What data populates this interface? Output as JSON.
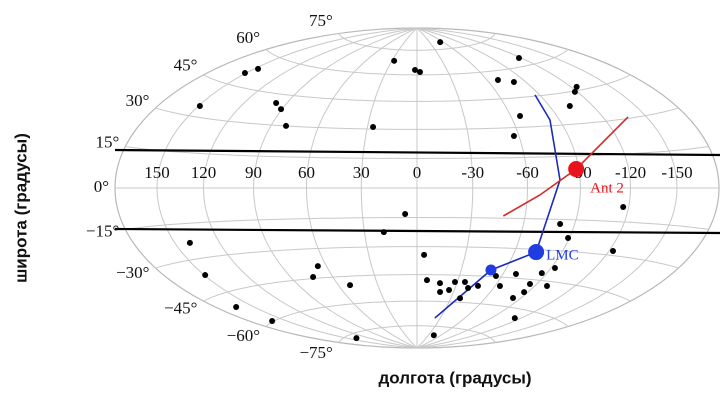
{
  "chart_data": {
    "type": "scatter",
    "projection": "hammer",
    "xlabel": "долгота (градусы)",
    "ylabel": "широта (градусы)",
    "xlim": [
      180,
      -180
    ],
    "ylim": [
      -90,
      90
    ],
    "xticks": [
      150,
      120,
      90,
      60,
      30,
      0,
      -30,
      -60,
      -90,
      -120,
      -150
    ],
    "yticks": [
      {
        "value": -75,
        "label": "−75°"
      },
      {
        "value": -60,
        "label": "−60°"
      },
      {
        "value": -45,
        "label": "−45°"
      },
      {
        "value": -30,
        "label": "−30°"
      },
      {
        "value": -15,
        "label": "−15°"
      },
      {
        "value": 0,
        "label": "0°"
      },
      {
        "value": 15,
        "label": "15°"
      },
      {
        "value": 30,
        "label": "30°"
      },
      {
        "value": 45,
        "label": "45°"
      },
      {
        "value": 60,
        "label": "60°"
      },
      {
        "value": 75,
        "label": "75°"
      }
    ],
    "grid": true,
    "points": {
      "color": "#000000",
      "x": [
        151,
        147,
        149,
        97.6,
        90.7,
        80.4,
        26.6,
        27.4,
        2.0,
        -2.9,
        -54,
        -117.7,
        -69.1,
        -80.4,
        -124.3,
        -118.2,
        -104,
        -66,
        -57,
        6.5,
        18.9,
        139.7,
        149.3,
        65.7,
        74,
        51.2,
        164,
        162,
        138,
        -4.4,
        -7.3,
        -17.3,
        -28.3,
        -35.7,
        -19,
        -25.8,
        -38.2,
        -40.2,
        -47,
        -55.9,
        -63.8,
        -69,
        -86.9,
        -83.4,
        -85,
        -86.5,
        -99.2,
        -92.7,
        -89.2,
        -81.3,
        -122.6,
        -116.6,
        -114,
        -43.4
      ],
      "y": [
        50.7,
        53.6,
        34.5,
        40.6,
        37.9,
        30,
        31.1,
        68.1,
        62.9,
        61.7,
        79.5,
        64.1,
        55,
        53.1,
        46.6,
        44.6,
        38.6,
        35.7,
        25.8,
        -13.2,
        -22.4,
        -23.2,
        -36.8,
        -38.9,
        -44.2,
        -49.8,
        -50.9,
        -59.7,
        -77.1,
        -34.4,
        -48,
        -49.6,
        -48.8,
        -48.6,
        -54.6,
        -53.3,
        -57.7,
        -51.8,
        -50.4,
        -44.6,
        -49.7,
        -42.9,
        -51.6,
        -55.2,
        -47.3,
        -41.4,
        -47.3,
        -38.4,
        -23.7,
        -17.2,
        -28,
        -8.4,
        -64.6,
        -80.7
      ]
    },
    "orbits": [
      {
        "color": "#1c2bbf",
        "x": [
          -23,
          -50.2,
          -73.6,
          -78.4,
          -83.8,
          -86.6
        ],
        "y": [
          -69.9,
          -41.6,
          -31.3,
          3.8,
          32.8,
          45.6
        ]
      },
      {
        "color": "#d42a2a",
        "x": [
          -47.7,
          -67,
          -88.4,
          -137.2
        ],
        "y": [
          -13.9,
          -3.4,
          8.9,
          30.6
        ]
      }
    ],
    "objects": [
      {
        "color": "#1f3de0",
        "x": -50.2,
        "y": -41.6
      },
      {
        "label": "LMC",
        "color": "#1f3de0",
        "x": -73.6,
        "y": -31.3
      },
      {
        "label": "Ant 2",
        "color": "#e8141a",
        "x": -88.4,
        "y": 8.9
      }
    ]
  }
}
